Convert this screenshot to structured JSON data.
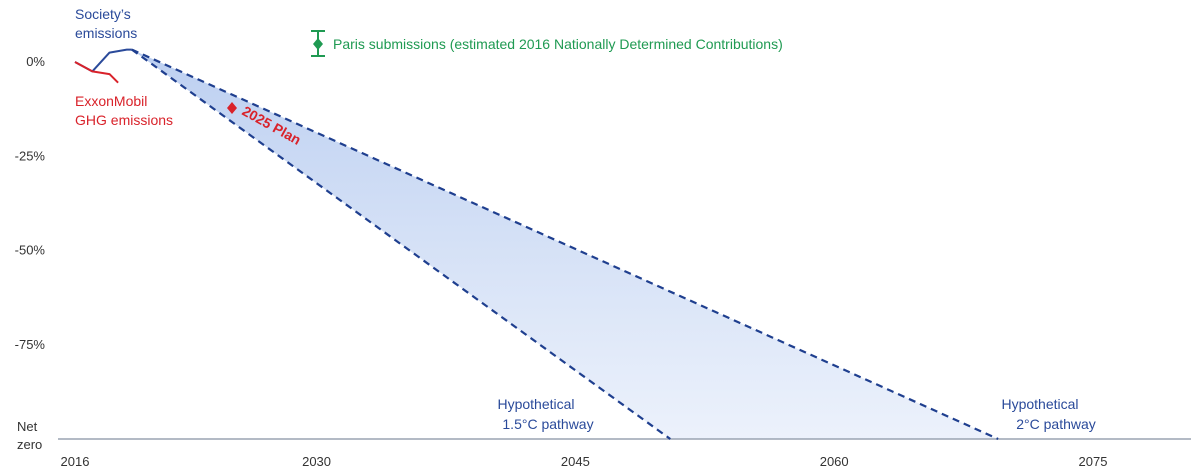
{
  "chart_data": {
    "type": "line",
    "x_ticks": [
      2016,
      2030,
      2045,
      2060,
      2075
    ],
    "xlim": [
      2015,
      2081
    ],
    "ylim": [
      -100,
      10
    ],
    "y_ticks": [
      {
        "value": 0,
        "label": "0%"
      },
      {
        "value": -25,
        "label": "-25%"
      },
      {
        "value": -50,
        "label": "-50%"
      },
      {
        "value": -75,
        "label": "-75%"
      },
      {
        "value": -100,
        "label": "Net zero"
      }
    ],
    "series": [
      {
        "name": "Society's emissions",
        "color": "#2a4a9a",
        "style": "solid",
        "points": [
          [
            2016,
            0
          ],
          [
            2017,
            -2.5
          ],
          [
            2018,
            2.5
          ],
          [
            2019,
            3.3
          ],
          [
            2019.3,
            3.3
          ]
        ]
      },
      {
        "name": "ExxonMobil GHG emissions",
        "color": "#d9222a",
        "style": "solid",
        "points": [
          [
            2016,
            0
          ],
          [
            2017,
            -2.5
          ],
          [
            2018,
            -3.2
          ],
          [
            2018.5,
            -5.5
          ]
        ]
      },
      {
        "name": "Hypothetical 1.5°C pathway",
        "color": "#1f3f8f",
        "style": "dashed",
        "points": [
          [
            2019.3,
            3.3
          ],
          [
            2050.5,
            -100
          ]
        ]
      },
      {
        "name": "Hypothetical 2°C pathway",
        "color": "#1f3f8f",
        "style": "dashed",
        "points": [
          [
            2019.3,
            3.3
          ],
          [
            2069.5,
            -100
          ]
        ]
      }
    ],
    "band": {
      "between": [
        "Hypothetical 1.5°C pathway",
        "Hypothetical 2°C pathway"
      ],
      "color": "#c9d8f4"
    },
    "markers": [
      {
        "label": "2025 Plan",
        "x": 2024.5,
        "y": -12,
        "color": "#d9222a",
        "shape": "diamond"
      },
      {
        "label": "Paris submissions (estimated 2016 Nationally Determined Contributions)",
        "shape": "errorbar",
        "color": "#1f9a52"
      }
    ],
    "annotations": {
      "society": [
        "Society’s",
        "emissions"
      ],
      "exxon": [
        "ExxonMobil",
        "GHG emissions"
      ],
      "paris": "Paris submissions (estimated 2016 Nationally Determined Contributions)",
      "plan": "2025 Plan",
      "p15": [
        "Hypothetical",
        "1.5°C pathway"
      ],
      "p2": [
        "Hypothetical",
        "2°C pathway"
      ]
    },
    "colors": {
      "blue": "#2a4a9a",
      "red": "#d9222a",
      "green": "#1f9a52",
      "band": "#c9d8f4",
      "axis": "#9aa3b2"
    }
  }
}
